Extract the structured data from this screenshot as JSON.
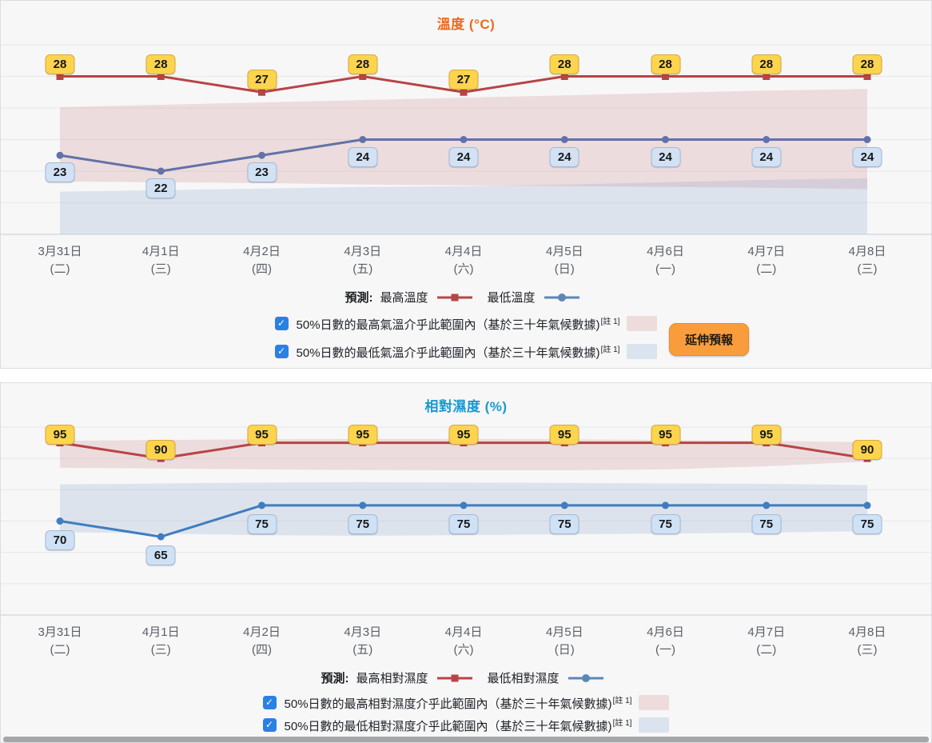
{
  "charts": [
    {
      "title": "溫度 (°C)",
      "title_color": "#ed6a1e",
      "legend": {
        "prefix": "預測:",
        "items": [
          {
            "label": "最高溫度",
            "color": "#b84445",
            "marker": "square"
          },
          {
            "label": "最低溫度",
            "color": "#5b87b7",
            "marker": "circle"
          }
        ]
      },
      "checkboxes": [
        {
          "checked": true,
          "label": "50%日數的最高氣溫介乎此範圍內（基於三十年氣候數據)",
          "note": "[註 1]",
          "swatch_color": "#eedcdc"
        },
        {
          "checked": true,
          "label": "50%日數的最低氣溫介乎此範圍內（基於三十年氣候數據)",
          "note": "[註 1]",
          "swatch_color": "#dbe3ee"
        }
      ],
      "button_label": "延伸預報",
      "chart_data": {
        "type": "line",
        "x_dates": [
          "3月31日",
          "4月1日",
          "4月2日",
          "4月3日",
          "4月4日",
          "4月5日",
          "4月6日",
          "4月7日",
          "4月8日"
        ],
        "x_weekdays": [
          "(二)",
          "(三)",
          "(四)",
          "(五)",
          "(六)",
          "(日)",
          "(一)",
          "(二)",
          "(三)"
        ],
        "ylim": [
          18,
          30
        ],
        "grid_step": 2,
        "series": [
          {
            "name": "最高溫度",
            "values": [
              28,
              28,
              27,
              28,
              27,
              28,
              28,
              28,
              28
            ],
            "color": "#b84445",
            "marker": "square",
            "label_bg": "#fdd44d",
            "label_border": "#d8a93c"
          },
          {
            "name": "最低溫度",
            "values": [
              23,
              22,
              23,
              24,
              24,
              24,
              24,
              24,
              24
            ],
            "color": "#6272a8",
            "marker": "circle",
            "label_bg": "#d2e1f3",
            "label_border": "#a4bad3"
          }
        ],
        "bands": [
          {
            "name": "max_temp_climate_range",
            "color": "rgba(190,100,100,0.18)",
            "top": [
              26.05,
              26.2,
              26.35,
              26.5,
              26.65,
              26.8,
              26.95,
              27.1,
              27.2
            ],
            "bottom": [
              21.35,
              21.3,
              21.25,
              21.15,
              21.1,
              21.05,
              21.0,
              20.95,
              20.85
            ]
          },
          {
            "name": "min_temp_climate_range",
            "color": "rgba(130,160,200,0.22)",
            "top": [
              20.7,
              20.8,
              20.9,
              21.0,
              21.05,
              21.15,
              21.3,
              21.45,
              21.55
            ],
            "bottom": [
              18,
              18,
              18,
              18,
              18,
              18,
              18,
              18,
              18
            ]
          }
        ]
      }
    },
    {
      "title": "相對濕度 (%)",
      "title_color": "#1899d2",
      "legend": {
        "prefix": "預測:",
        "items": [
          {
            "label": "最高相對濕度",
            "color": "#b84445",
            "marker": "square"
          },
          {
            "label": "最低相對濕度",
            "color": "#5b87b7",
            "marker": "circle"
          }
        ]
      },
      "checkboxes": [
        {
          "checked": true,
          "label": "50%日數的最高相對濕度介乎此範圍內（基於三十年氣候數據)",
          "note": "[註 1]",
          "swatch_color": "#eedcdc"
        },
        {
          "checked": true,
          "label": "50%日數的最低相對濕度介乎此範圍內（基於三十年氣候數據)",
          "note": "[註 1]",
          "swatch_color": "#dbe3ee"
        }
      ],
      "chart_data": {
        "type": "line",
        "x_dates": [
          "3月31日",
          "4月1日",
          "4月2日",
          "4月3日",
          "4月4日",
          "4月5日",
          "4月6日",
          "4月7日",
          "4月8日"
        ],
        "x_weekdays": [
          "(二)",
          "(三)",
          "(四)",
          "(五)",
          "(六)",
          "(日)",
          "(一)",
          "(二)",
          "(三)"
        ],
        "ylim": [
          40,
          100
        ],
        "grid_step": 10,
        "series": [
          {
            "name": "最高相對濕度",
            "values": [
              95,
              90,
              95,
              95,
              95,
              95,
              95,
              95,
              90
            ],
            "color": "#b84445",
            "marker": "square",
            "label_bg": "#fdd44d",
            "label_border": "#d8a93c"
          },
          {
            "name": "最低相對濕度",
            "values": [
              70,
              65,
              75,
              75,
              75,
              75,
              75,
              75,
              75
            ],
            "color": "#3f7dc0",
            "marker": "circle",
            "label_bg": "#cfe1f5",
            "label_border": "#a4bad3"
          }
        ],
        "bands": [
          {
            "name": "max_rh_climate_range",
            "color": "rgba(190,100,100,0.18)",
            "top": [
              95.6,
              95.9,
              96.1,
              96.2,
              96.2,
              96.1,
              95.9,
              95.6,
              95.2
            ],
            "bottom": [
              87.0,
              86.8,
              86.5,
              86.3,
              86.2,
              86.2,
              86.5,
              87.5,
              89.0
            ]
          },
          {
            "name": "min_rh_climate_range",
            "color": "rgba(130,160,200,0.22)",
            "top": [
              81.7,
              82.0,
              82.3,
              82.4,
              82.3,
              82.2,
              82.0,
              81.9,
              81.5
            ],
            "bottom": [
              66.5,
              66.0,
              65.5,
              65.3,
              65.5,
              65.8,
              66.0,
              66.3,
              66.8
            ]
          }
        ]
      }
    }
  ]
}
